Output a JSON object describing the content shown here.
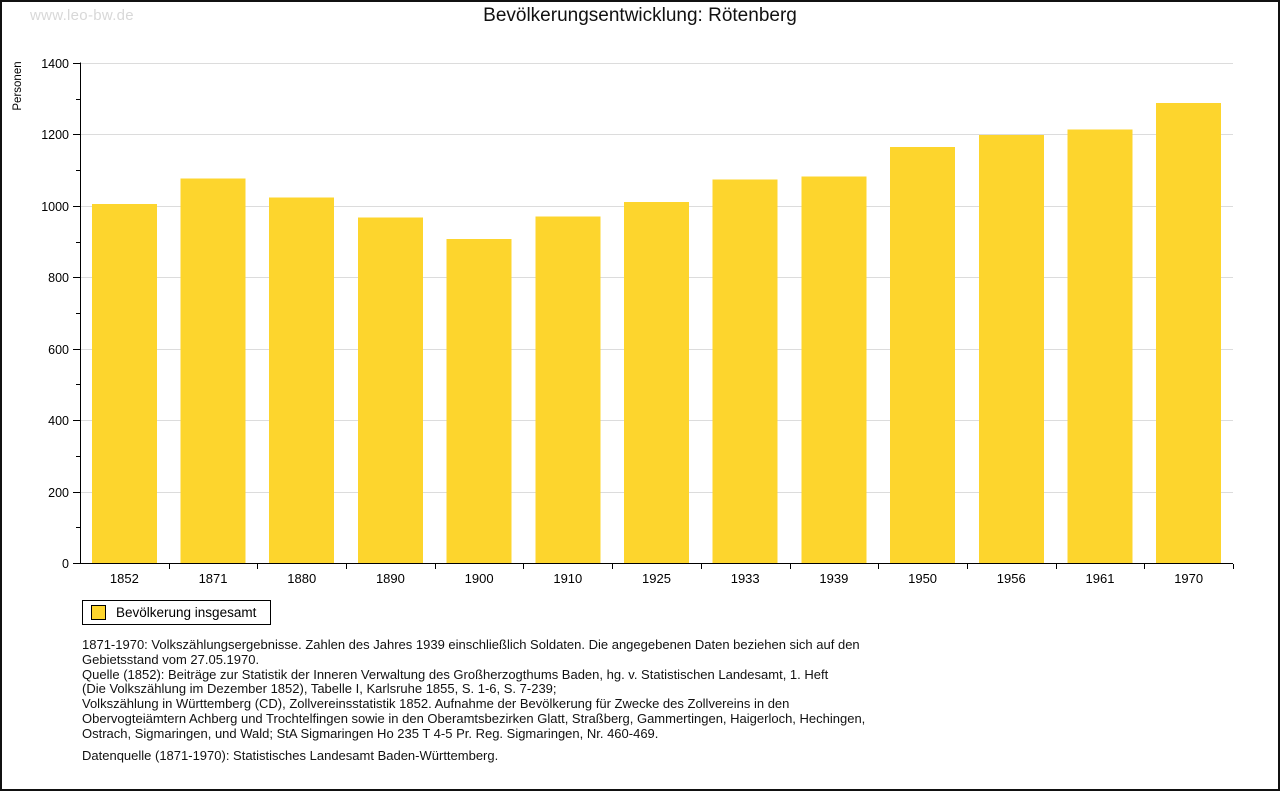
{
  "watermark": "www.leo-bw.de",
  "title": "Bevölkerungsentwicklung: Rötenberg",
  "chart_data": {
    "type": "bar",
    "title": "Bevölkerungsentwicklung: Rötenberg",
    "xlabel": "",
    "ylabel": "Personen",
    "categories": [
      "1852",
      "1871",
      "1880",
      "1890",
      "1900",
      "1910",
      "1925",
      "1933",
      "1939",
      "1950",
      "1956",
      "1961",
      "1970"
    ],
    "values": [
      1005,
      1077,
      1023,
      967,
      907,
      970,
      1011,
      1074,
      1082,
      1165,
      1199,
      1214,
      1288
    ],
    "ylim": [
      0,
      1400
    ],
    "ytick_step": 200,
    "minor_tick_step": 100,
    "grid": true,
    "legend_position": "bottom-left",
    "series_name": "Bevölkerung insgesamt",
    "bar_color": "#FDD52D",
    "grid_color": "#dcdcdc",
    "axis_color": "#000000"
  },
  "legend": {
    "label": "Bevölkerung insgesamt",
    "swatch_color": "#FDD52D"
  },
  "footnotes": {
    "lines": [
      "1871-1970: Volkszählungsergebnisse. Zahlen des Jahres 1939 einschließlich Soldaten. Die angegebenen Daten beziehen sich auf den",
      "Gebietsstand vom 27.05.1970.",
      "Quelle (1852): Beiträge zur Statistik der Inneren Verwaltung des Großherzogthums Baden, hg. v. Statistischen Landesamt, 1. Heft",
      "(Die Volkszählung im Dezember 1852), Tabelle I, Karlsruhe 1855, S. 1-6, S. 7-239;",
      "Volkszählung in Württemberg (CD), Zollvereinsstatistik 1852. Aufnahme der Bevölkerung für Zwecke des Zollvereins in den",
      "Obervogteiämtern Achberg und Trochtelfingen sowie in den Oberamtsbezirken Glatt, Straßberg, Gammertingen, Haigerloch, Hechingen,",
      "Ostrach, Sigmaringen, und Wald; StA Sigmaringen Ho 235 T 4-5 Pr. Reg. Sigmaringen, Nr. 460-469."
    ],
    "datasource": "Datenquelle (1871-1970): Statistisches Landesamt Baden-Württemberg."
  }
}
